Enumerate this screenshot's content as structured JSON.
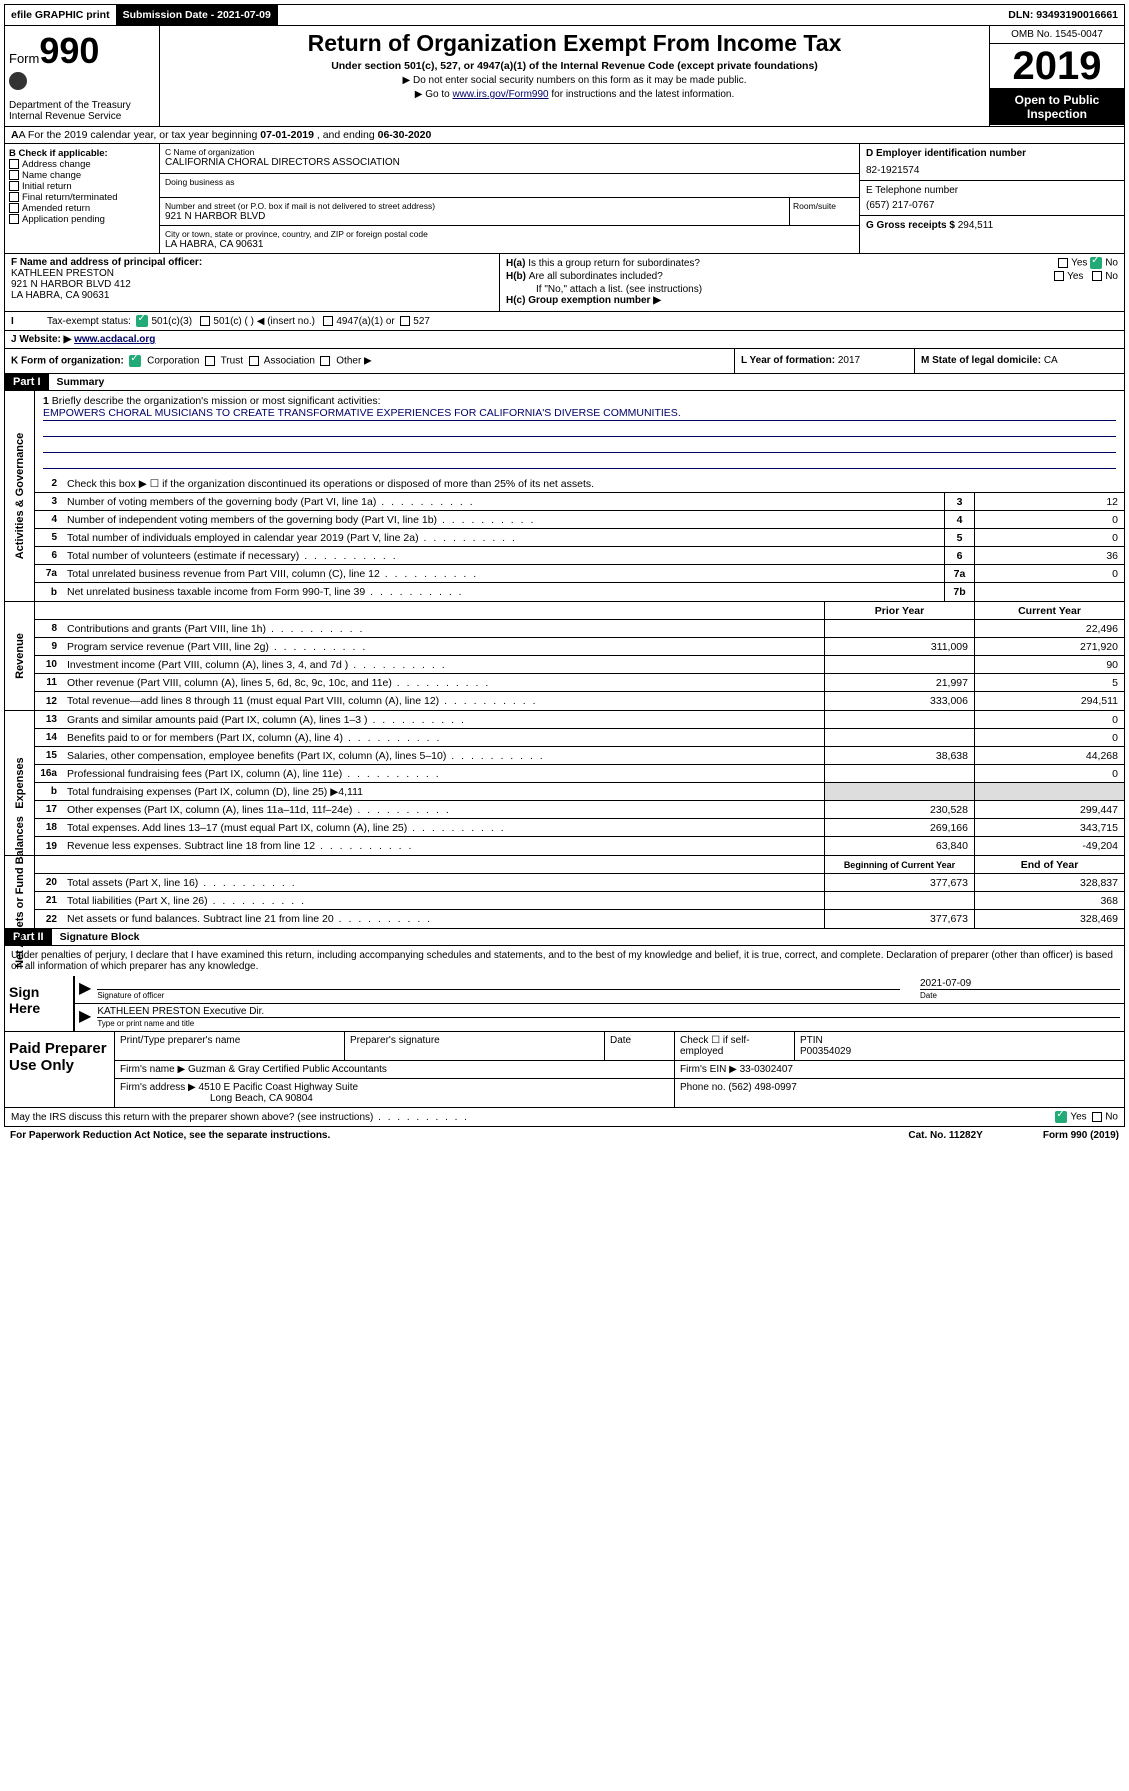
{
  "colors": {
    "link": "#000066",
    "check": "#22aa77",
    "shade": "#dddddd"
  },
  "topbar": {
    "efile": "efile GRAPHIC print",
    "subdate_label": "Submission Date - 2021-07-09",
    "dln": "DLN: 93493190016661"
  },
  "header": {
    "form_small": "Form",
    "form_big": "990",
    "dept": "Department of the Treasury Internal Revenue Service",
    "title": "Return of Organization Exempt From Income Tax",
    "subtitle": "Under section 501(c), 527, or 4947(a)(1) of the Internal Revenue Code (except private foundations)",
    "note1": "▶ Do not enter social security numbers on this form as it may be made public.",
    "note2_pre": "▶ Go to ",
    "note2_link": "www.irs.gov/Form990",
    "note2_post": " for instructions and the latest information.",
    "omb": "OMB No. 1545-0047",
    "year": "2019",
    "open": "Open to Public Inspection"
  },
  "row_a": {
    "pre": "A For the 2019 calendar year, or tax year beginning ",
    "begin": "07-01-2019",
    "mid": " , and ending ",
    "end": "06-30-2020"
  },
  "col_b": {
    "hd": "B Check if applicable:",
    "items": [
      "Address change",
      "Name change",
      "Initial return",
      "Final return/terminated",
      "Amended return",
      "Application pending"
    ]
  },
  "col_c": {
    "name_lbl": "C Name of organization",
    "name": "CALIFORNIA CHORAL DIRECTORS ASSOCIATION",
    "dba_lbl": "Doing business as",
    "addr_lbl": "Number and street (or P.O. box if mail is not delivered to street address)",
    "addr": "921 N HARBOR BLVD",
    "room_lbl": "Room/suite",
    "city_lbl": "City or town, state or province, country, and ZIP or foreign postal code",
    "city": "LA HABRA, CA  90631"
  },
  "col_de": {
    "d_hd": "D Employer identification number",
    "d_val": "82-1921574",
    "e_hd": "E Telephone number",
    "e_val": "(657) 217-0767",
    "g_hd": "G Gross receipts $",
    "g_val": "294,511"
  },
  "row_f": {
    "hd": "F  Name and address of principal officer:",
    "name": "KATHLEEN PRESTON",
    "addr1": "921 N HARBOR BLVD 412",
    "addr2": "LA HABRA, CA  90631"
  },
  "row_h": {
    "a": "H(a)  Is this a group return for subordinates?",
    "b": "H(b)  Are all subordinates included?",
    "note": "If \"No,\" attach a list. (see instructions)",
    "c": "H(c)  Group exemption number ▶",
    "yes": "Yes",
    "no": "No"
  },
  "row_i": {
    "lbl": "Tax-exempt status:",
    "opts": [
      "501(c)(3)",
      "501(c) (  ) ◀ (insert no.)",
      "4947(a)(1) or",
      "527"
    ]
  },
  "row_j": {
    "lbl": "J Website: ▶ ",
    "url": "www.acdacal.org"
  },
  "row_k": {
    "lbl": "K Form of organization:",
    "opts": [
      "Corporation",
      "Trust",
      "Association",
      "Other ▶"
    ]
  },
  "row_l": {
    "lbl": "L Year of formation:",
    "val": "2017"
  },
  "row_m": {
    "lbl": "M State of legal domicile:",
    "val": "CA"
  },
  "part1": {
    "hdr": "Part I",
    "title": "Summary"
  },
  "mission": {
    "num": "1",
    "lbl": "Briefly describe the organization's mission or most significant activities:",
    "text": "EMPOWERS CHORAL MUSICIANS TO CREATE TRANSFORMATIVE EXPERIENCES FOR CALIFORNIA'S DIVERSE COMMUNITIES."
  },
  "gov_lines": [
    {
      "n": "2",
      "t": "Check this box ▶ ☐  if the organization discontinued its operations or disposed of more than 25% of its net assets."
    },
    {
      "n": "3",
      "t": "Number of voting members of the governing body (Part VI, line 1a)",
      "sm": "3",
      "v": "12"
    },
    {
      "n": "4",
      "t": "Number of independent voting members of the governing body (Part VI, line 1b)",
      "sm": "4",
      "v": "0"
    },
    {
      "n": "5",
      "t": "Total number of individuals employed in calendar year 2019 (Part V, line 2a)",
      "sm": "5",
      "v": "0"
    },
    {
      "n": "6",
      "t": "Total number of volunteers (estimate if necessary)",
      "sm": "6",
      "v": "36"
    },
    {
      "n": "7a",
      "t": "Total unrelated business revenue from Part VIII, column (C), line 12",
      "sm": "7a",
      "v": "0"
    },
    {
      "n": "b",
      "t": "Net unrelated business taxable income from Form 990-T, line 39",
      "sm": "7b",
      "v": ""
    }
  ],
  "rev_hdr": {
    "py": "Prior Year",
    "cy": "Current Year"
  },
  "rev_lines": [
    {
      "n": "8",
      "t": "Contributions and grants (Part VIII, line 1h)",
      "py": "",
      "cy": "22,496"
    },
    {
      "n": "9",
      "t": "Program service revenue (Part VIII, line 2g)",
      "py": "311,009",
      "cy": "271,920"
    },
    {
      "n": "10",
      "t": "Investment income (Part VIII, column (A), lines 3, 4, and 7d )",
      "py": "",
      "cy": "90"
    },
    {
      "n": "11",
      "t": "Other revenue (Part VIII, column (A), lines 5, 6d, 8c, 9c, 10c, and 11e)",
      "py": "21,997",
      "cy": "5"
    },
    {
      "n": "12",
      "t": "Total revenue—add lines 8 through 11 (must equal Part VIII, column (A), line 12)",
      "py": "333,006",
      "cy": "294,511"
    }
  ],
  "exp_lines": [
    {
      "n": "13",
      "t": "Grants and similar amounts paid (Part IX, column (A), lines 1–3 )",
      "py": "",
      "cy": "0"
    },
    {
      "n": "14",
      "t": "Benefits paid to or for members (Part IX, column (A), line 4)",
      "py": "",
      "cy": "0"
    },
    {
      "n": "15",
      "t": "Salaries, other compensation, employee benefits (Part IX, column (A), lines 5–10)",
      "py": "38,638",
      "cy": "44,268"
    },
    {
      "n": "16a",
      "t": "Professional fundraising fees (Part IX, column (A), line 11e)",
      "py": "",
      "cy": "0"
    },
    {
      "n": "b",
      "t": "Total fundraising expenses (Part IX, column (D), line 25) ▶4,111",
      "shade": true
    },
    {
      "n": "17",
      "t": "Other expenses (Part IX, column (A), lines 11a–11d, 11f–24e)",
      "py": "230,528",
      "cy": "299,447"
    },
    {
      "n": "18",
      "t": "Total expenses. Add lines 13–17 (must equal Part IX, column (A), line 25)",
      "py": "269,166",
      "cy": "343,715"
    },
    {
      "n": "19",
      "t": "Revenue less expenses. Subtract line 18 from line 12",
      "py": "63,840",
      "cy": "-49,204"
    }
  ],
  "na_hdr": {
    "py": "Beginning of Current Year",
    "cy": "End of Year"
  },
  "na_lines": [
    {
      "n": "20",
      "t": "Total assets (Part X, line 16)",
      "py": "377,673",
      "cy": "328,837"
    },
    {
      "n": "21",
      "t": "Total liabilities (Part X, line 26)",
      "py": "",
      "cy": "368"
    },
    {
      "n": "22",
      "t": "Net assets or fund balances. Subtract line 21 from line 20",
      "py": "377,673",
      "cy": "328,469"
    }
  ],
  "part2": {
    "hdr": "Part II",
    "title": "Signature Block"
  },
  "sig": {
    "intro": "Under penalties of perjury, I declare that I have examined this return, including accompanying schedules and statements, and to the best of my knowledge and belief, it is true, correct, and complete. Declaration of preparer (other than officer) is based on all information of which preparer has any knowledge.",
    "here": "Sign Here",
    "sig_lbl": "Signature of officer",
    "date": "2021-07-09",
    "date_lbl": "Date",
    "name": "KATHLEEN PRESTON  Executive Dir.",
    "name_lbl": "Type or print name and title"
  },
  "prep": {
    "hd": "Paid Preparer Use Only",
    "c1": "Print/Type preparer's name",
    "c2": "Preparer's signature",
    "c3": "Date",
    "c4a": "Check ☐ if self-employed",
    "c5": "PTIN",
    "ptin": "P00354029",
    "firm_lbl": "Firm's name    ▶",
    "firm": "Guzman & Gray Certified Public Accountants",
    "ein_lbl": "Firm's EIN ▶",
    "ein": "33-0302407",
    "addr_lbl": "Firm's address ▶",
    "addr1": "4510 E Pacific Coast Highway Suite",
    "addr2": "Long Beach, CA  90804",
    "phone_lbl": "Phone no.",
    "phone": "(562) 498-0997"
  },
  "foot": {
    "q": "May the IRS discuss this return with the preparer shown above? (see instructions)",
    "yes": "Yes",
    "no": "No",
    "pra": "For Paperwork Reduction Act Notice, see the separate instructions.",
    "cat": "Cat. No. 11282Y",
    "form": "Form 990 (2019)"
  },
  "vtabs": {
    "gov": "Activities & Governance",
    "rev": "Revenue",
    "exp": "Expenses",
    "na": "Net Assets or Fund Balances"
  }
}
